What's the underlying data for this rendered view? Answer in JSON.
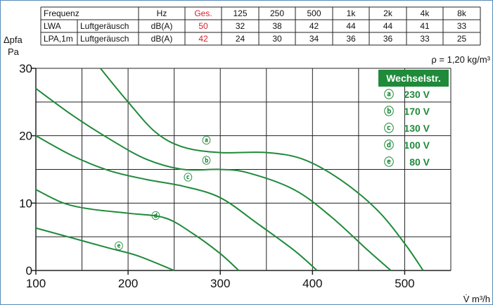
{
  "table": {
    "header": [
      "Frequenz",
      "",
      "Hz",
      "Ges.",
      "125",
      "250",
      "500",
      "1k",
      "2k",
      "4k",
      "8k"
    ],
    "rows": [
      [
        "LWA",
        "Luftgeräusch",
        "dB(A)",
        "50",
        "32",
        "38",
        "42",
        "44",
        "44",
        "41",
        "33"
      ],
      [
        "LPA,1m",
        "Luftgeräusch",
        "dB(A)",
        "42",
        "24",
        "30",
        "34",
        "36",
        "36",
        "33",
        "25"
      ]
    ],
    "ges_color": "#d6202f"
  },
  "axis_labels": {
    "y_symbol": "Δpfa",
    "y_unit": "Pa",
    "x_label": "V̇ m³/h",
    "density": "ρ = 1,20 kg/m³"
  },
  "legend": {
    "title": "Wechselstr.",
    "items": [
      {
        "mark": "ⓐ",
        "label": "230 V"
      },
      {
        "mark": "ⓑ",
        "label": "170 V"
      },
      {
        "mark": "ⓒ",
        "label": "130 V"
      },
      {
        "mark": "ⓓ",
        "label": "100 V"
      },
      {
        "mark": "ⓔ",
        "label": "80 V"
      }
    ],
    "bg_color": "#1f8a3a"
  },
  "chart_data": {
    "type": "line",
    "xlim": [
      100,
      550
    ],
    "ylim": [
      0,
      30
    ],
    "x_ticks": [
      100,
      200,
      300,
      400,
      500
    ],
    "y_ticks": [
      0,
      10,
      20,
      30
    ],
    "grid": true,
    "line_color": "#1f8a3a",
    "series": [
      {
        "name": "ⓐ",
        "label_at": [
          285,
          19.3
        ],
        "points": [
          [
            170,
            30
          ],
          [
            200,
            25
          ],
          [
            230,
            20.5
          ],
          [
            260,
            18.3
          ],
          [
            300,
            17.5
          ],
          [
            350,
            17.5
          ],
          [
            390,
            16.5
          ],
          [
            430,
            13.5
          ],
          [
            470,
            9
          ],
          [
            500,
            4
          ],
          [
            520,
            0
          ]
        ]
      },
      {
        "name": "ⓑ",
        "label_at": [
          285,
          16.3
        ],
        "points": [
          [
            100,
            27
          ],
          [
            140,
            23
          ],
          [
            180,
            19.5
          ],
          [
            220,
            16.5
          ],
          [
            260,
            15
          ],
          [
            300,
            15
          ],
          [
            330,
            14.5
          ],
          [
            380,
            12
          ],
          [
            420,
            8
          ],
          [
            460,
            3
          ],
          [
            485,
            0
          ]
        ]
      },
      {
        "name": "ⓒ",
        "label_at": [
          265,
          13.8
        ],
        "points": [
          [
            100,
            20
          ],
          [
            140,
            17
          ],
          [
            180,
            14.8
          ],
          [
            220,
            13.5
          ],
          [
            260,
            12.5
          ],
          [
            300,
            10.8
          ],
          [
            340,
            7
          ],
          [
            380,
            3
          ],
          [
            405,
            0
          ]
        ]
      },
      {
        "name": "ⓓ",
        "label_at": [
          230,
          8.1
        ],
        "points": [
          [
            100,
            12
          ],
          [
            130,
            10
          ],
          [
            160,
            9.1
          ],
          [
            200,
            8.5
          ],
          [
            240,
            7.8
          ],
          [
            270,
            5.5
          ],
          [
            300,
            2.5
          ],
          [
            320,
            0
          ]
        ]
      },
      {
        "name": "ⓔ",
        "label_at": [
          190,
          3.6
        ],
        "points": [
          [
            100,
            6.3
          ],
          [
            140,
            4.8
          ],
          [
            180,
            3.3
          ],
          [
            210,
            2.2
          ],
          [
            250,
            0
          ]
        ]
      }
    ]
  }
}
